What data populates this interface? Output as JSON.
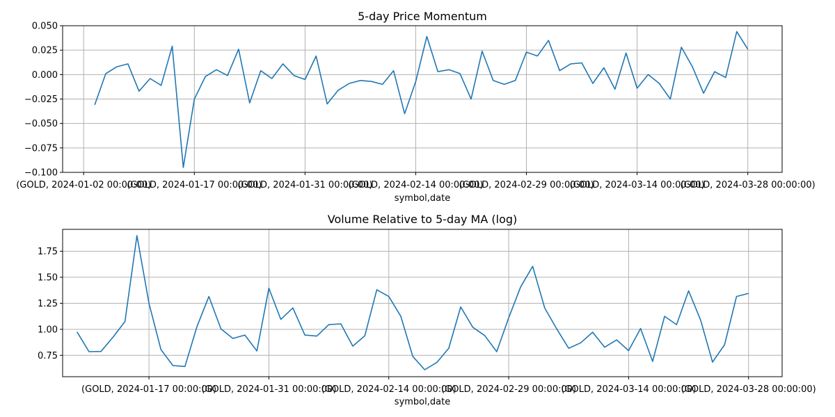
{
  "chart_data": [
    {
      "type": "line",
      "title": "5-day Price Momentum",
      "xlabel": "symbol,date",
      "ylabel": "",
      "ylim": [
        -0.1,
        0.05
      ],
      "yticks": [
        "0.050",
        "0.025",
        "0.000",
        "−0.025",
        "−0.050",
        "−0.075",
        "−0.100"
      ],
      "ytick_values": [
        0.05,
        0.025,
        0.0,
        -0.025,
        -0.05,
        -0.075,
        -0.1
      ],
      "xticks": [
        "(GOLD, 2024-01-02 00:00:00)",
        "(GOLD, 2024-01-17 00:00:00)",
        "(GOLD, 2024-01-31 00:00:00)",
        "(GOLD, 2024-02-14 00:00:00)",
        "(GOLD, 2024-02-29 00:00:00)",
        "(GOLD, 2024-03-14 00:00:00)",
        "(GOLD, 2024-03-28 00:00:00)"
      ],
      "xtick_index": [
        0,
        10,
        20,
        30,
        40,
        50,
        60
      ],
      "x_range": [
        -1.9,
        63.1
      ],
      "grid": true,
      "series": [
        {
          "x_start": 1,
          "values": [
            -0.031,
            0.001,
            0.008,
            0.011,
            -0.017,
            -0.004,
            -0.011,
            0.029,
            -0.095,
            -0.025,
            -0.002,
            0.005,
            -0.001,
            0.026,
            -0.029,
            0.004,
            -0.004,
            0.011,
            -0.001,
            -0.005,
            0.019,
            -0.03,
            -0.016,
            -0.009,
            -0.006,
            -0.007,
            -0.01,
            0.004,
            -0.04,
            -0.007,
            0.039,
            0.003,
            0.005,
            0.001,
            -0.025,
            0.024,
            -0.006,
            -0.01,
            -0.006,
            0.023,
            0.019,
            0.035,
            0.004,
            0.011,
            0.012,
            -0.009,
            0.007,
            -0.015,
            0.022,
            -0.014,
            0.0,
            -0.009,
            -0.025,
            0.028,
            0.008,
            -0.019,
            0.003,
            -0.003,
            0.044,
            0.026
          ]
        }
      ]
    },
    {
      "type": "line",
      "title": "Volume Relative to 5-day MA (log)",
      "xlabel": "symbol,date",
      "ylabel": "",
      "ylim": [
        0.545,
        1.96
      ],
      "yticks": [
        "1.75",
        "1.50",
        "1.25",
        "1.00",
        "0.75"
      ],
      "ytick_values": [
        1.75,
        1.5,
        1.25,
        1.0,
        0.75
      ],
      "xticks": [
        "(GOLD, 2024-01-17 00:00:00)",
        "(GOLD, 2024-01-31 00:00:00)",
        "(GOLD, 2024-02-14 00:00:00)",
        "(GOLD, 2024-02-29 00:00:00)",
        "(GOLD, 2024-03-14 00:00:00)",
        "(GOLD, 2024-03-28 00:00:00)"
      ],
      "xtick_index": [
        10,
        20,
        30,
        40,
        50,
        60
      ],
      "x_range": [
        2.8,
        62.8
      ],
      "grid": true,
      "series": [
        {
          "x_start": 4,
          "values": [
            0.975,
            0.785,
            0.787,
            0.925,
            1.075,
            1.9,
            1.25,
            0.805,
            0.652,
            0.643,
            1.025,
            1.315,
            1.005,
            0.912,
            0.945,
            0.792,
            1.395,
            1.095,
            1.205,
            0.945,
            0.935,
            1.045,
            1.052,
            0.838,
            0.938,
            1.38,
            1.315,
            1.125,
            0.74,
            0.612,
            0.681,
            0.818,
            1.215,
            1.02,
            0.94,
            0.785,
            1.112,
            1.408,
            1.605,
            1.205,
            1.005,
            0.818,
            0.87,
            0.972,
            0.828,
            0.898,
            0.795,
            1.008,
            0.692,
            1.125,
            1.045,
            1.37,
            1.09,
            0.685,
            0.852,
            1.315,
            1.345
          ]
        }
      ]
    }
  ]
}
